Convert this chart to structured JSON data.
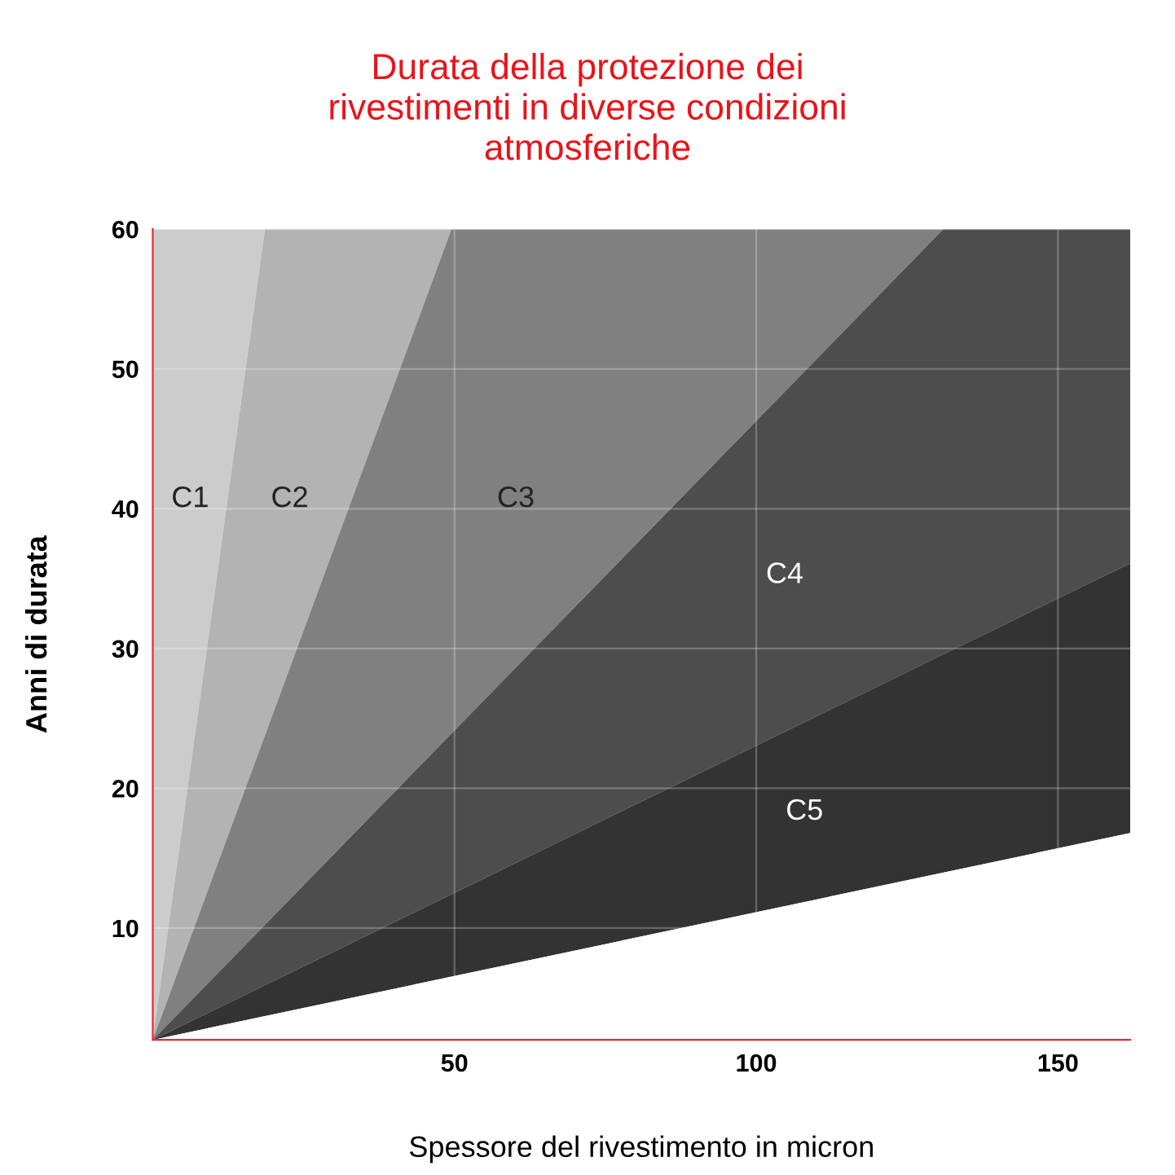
{
  "chart_data": {
    "type": "area",
    "title": "Durata della protezione dei\nrivestimenti in diverse condizioni\natmosferiche",
    "xlabel": "Spessore del rivestimento in micron",
    "ylabel": "Anni di durata",
    "xlim": [
      0,
      162
    ],
    "ylim": [
      2,
      60
    ],
    "xticks": [
      50,
      100,
      150
    ],
    "yticks": [
      10,
      20,
      30,
      40,
      50,
      60
    ],
    "grid": true,
    "legend": false,
    "series": [
      {
        "name": "C1",
        "color": "#cccccc",
        "x": [
          0,
          18.6
        ],
        "values": [
          60,
          60
        ]
      },
      {
        "name": "C2",
        "color": "#b3b3b3",
        "x": [
          0,
          18.6,
          49.5
        ],
        "values": [
          2,
          60,
          60
        ]
      },
      {
        "name": "C3",
        "color": "#808080",
        "x": [
          0,
          49.5,
          131
        ],
        "values": [
          2,
          60,
          60
        ]
      },
      {
        "name": "C4",
        "color": "#4d4d4d",
        "x": [
          0,
          131,
          162
        ],
        "values": [
          2,
          60,
          60
        ]
      },
      {
        "name": "C5",
        "color": "#333333",
        "x": [
          0,
          162
        ],
        "values": [
          2,
          36.1
        ]
      },
      {
        "color": "#ffffff",
        "x": [
          0,
          162
        ],
        "values": [
          2,
          16.8
        ]
      }
    ]
  }
}
